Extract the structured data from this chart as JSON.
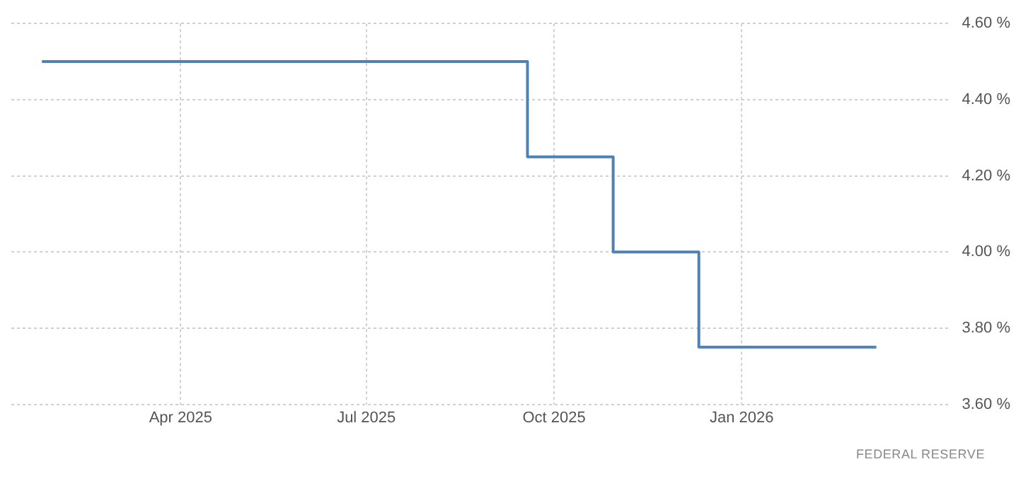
{
  "chart_data": {
    "type": "step",
    "x": [
      "2025-01-23",
      "2025-09-18",
      "2025-10-30",
      "2025-12-11",
      "2026-03-08"
    ],
    "series": [
      {
        "color": "#4f81b4",
        "values": [
          4.5,
          4.25,
          4.0,
          3.75,
          3.75
        ]
      }
    ],
    "xlim": [
      "2025-01-08",
      "2026-04-12"
    ],
    "xticks": [
      {
        "value": "2025-04-01",
        "label": "Apr 2025"
      },
      {
        "value": "2025-07-01",
        "label": "Jul 2025"
      },
      {
        "value": "2025-10-01",
        "label": "Oct 2025"
      },
      {
        "value": "2026-01-01",
        "label": "Jan 2026"
      }
    ],
    "ylim": [
      3.6,
      4.6
    ],
    "yticks": [
      {
        "value": 3.6,
        "label": "3.60 %"
      },
      {
        "value": 3.8,
        "label": "3.80 %"
      },
      {
        "value": 4.0,
        "label": "4.00 %"
      },
      {
        "value": 4.2,
        "label": "4.20 %"
      },
      {
        "value": 4.4,
        "label": "4.40 %"
      },
      {
        "value": 4.6,
        "label": "4.60 %"
      }
    ],
    "grid": true,
    "legend": false,
    "marker": "none",
    "line_style": "solid",
    "annotations": [
      "FEDERAL RESERVE"
    ]
  }
}
